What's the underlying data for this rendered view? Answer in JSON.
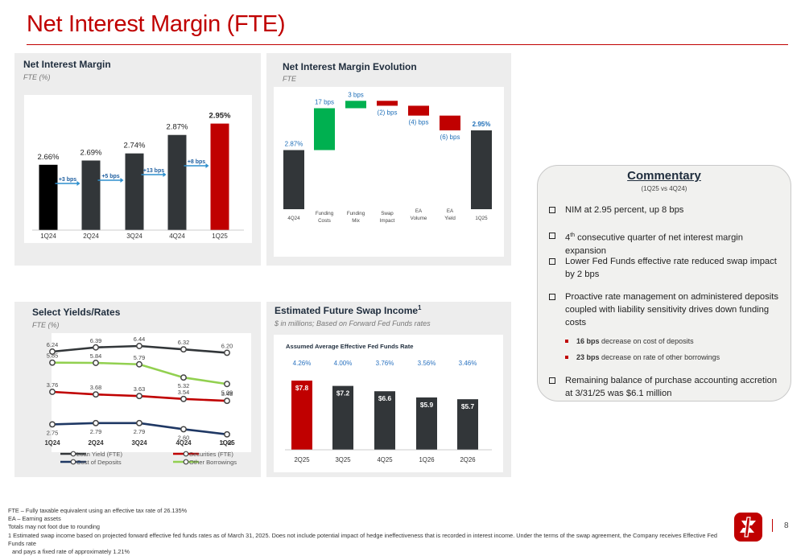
{
  "header": {
    "title": "Net Interest Margin (FTE)"
  },
  "nim_panel": {
    "title": "Net Interest Margin",
    "subtitle": "FTE (%)"
  },
  "evo_panel": {
    "title": "Net Interest Margin Evolution",
    "subtitle": "FTE"
  },
  "yields_panel": {
    "title": "Select Yields/Rates",
    "subtitle": "FTE (%)"
  },
  "swap_panel": {
    "title": "Estimated Future Swap Income",
    "title_sup": "1",
    "subtitle": "$ in millions; Based on Forward Fed Funds rates",
    "rate_heading": "Assumed Average Effective Fed Funds Rate"
  },
  "chart_data": [
    {
      "type": "bar",
      "categories": [
        "1Q24",
        "2Q24",
        "3Q24",
        "4Q24",
        "1Q25"
      ],
      "values": [
        2.66,
        2.69,
        2.74,
        2.87,
        2.95
      ],
      "value_labels": [
        "2.66%",
        "2.69%",
        "2.74%",
        "2.87%",
        "2.95%"
      ],
      "change_labels": [
        "+3 bps",
        "+5 bps",
        "+13 bps",
        "+8 bps"
      ],
      "colors": [
        "#000000",
        "#323639",
        "#323639",
        "#323639",
        "#c00000"
      ]
    },
    {
      "type": "bar",
      "categories": [
        "4Q24",
        "Funding Costs",
        "Funding Mix",
        "Swap Impact",
        "EA Volume",
        "EA Yield",
        "1Q25"
      ],
      "values": [
        2.87,
        0.17,
        0.03,
        -0.02,
        -0.04,
        -0.06,
        2.95
      ],
      "value_labels": [
        "2.87%",
        "17 bps",
        "3 bps",
        "(2) bps",
        "(4) bps",
        "(6) bps",
        "2.95%"
      ],
      "colors": [
        "#323639",
        "#00b050",
        "#00b050",
        "#c00000",
        "#c00000",
        "#c00000",
        "#323639"
      ]
    },
    {
      "type": "line",
      "categories": [
        "1Q24",
        "2Q24",
        "3Q24",
        "4Q24",
        "1Q25"
      ],
      "series": [
        {
          "name": "Loan Yield (FTE)",
          "values": [
            6.24,
            6.39,
            6.44,
            6.32,
            6.2
          ],
          "labels": [
            "6.24",
            "6.39",
            "6.44",
            "6.32",
            "6.20"
          ],
          "color": "#323639"
        },
        {
          "name": "Other Borrowings",
          "values": [
            5.85,
            5.84,
            5.79,
            5.32,
            5.09
          ],
          "labels": [
            "5.85",
            "5.84",
            "5.79",
            "5.32",
            "5.09"
          ],
          "color": "#92d050"
        },
        {
          "name": "Securities (FTE)",
          "values": [
            3.76,
            3.68,
            3.63,
            3.54,
            3.48
          ],
          "labels": [
            "3.76",
            "3.68",
            "3.63",
            "3.54",
            "3.48"
          ],
          "color": "#c00000"
        },
        {
          "name": "Cost of Deposits",
          "values": [
            2.75,
            2.79,
            2.79,
            2.6,
            2.44
          ],
          "labels": [
            "2.75",
            "2.79",
            "2.79",
            "2.60",
            "2.44"
          ],
          "color": "#1f3864"
        }
      ]
    },
    {
      "type": "bar",
      "categories": [
        "2Q25",
        "3Q25",
        "4Q25",
        "1Q26",
        "2Q26"
      ],
      "values": [
        7.8,
        7.2,
        6.6,
        5.9,
        5.7
      ],
      "value_labels": [
        "$7.8",
        "$7.2",
        "$6.6",
        "$5.9",
        "$5.7"
      ],
      "fed_funds_rates": [
        "4.26%",
        "4.00%",
        "3.76%",
        "3.56%",
        "3.46%"
      ],
      "colors": [
        "#c00000",
        "#323639",
        "#323639",
        "#323639",
        "#323639"
      ]
    }
  ],
  "commentary": {
    "title": "Commentary",
    "subtitle": "(1Q25 vs 4Q24)",
    "b1": "NIM at 2.95 percent, up 8 bps",
    "b2_pre": "4",
    "b2_sup": "th",
    "b2_post": " consecutive quarter of net interest margin expansion",
    "b3": "Lower Fed Funds effective rate reduced swap impact by 2 bps",
    "b4": "Proactive rate management on administered deposits coupled with liability sensitivity drives down funding costs",
    "s1_bold": "16 bps",
    "s1_rest": " decrease on cost of deposits",
    "s2_bold": "23 bps",
    "s2_rest": " decrease on rate of other borrowings",
    "b5": "Remaining balance of purchase accounting accretion at 3/31/25 was $6.1 million"
  },
  "footnotes": {
    "f1": "FTE – Fully taxable equivalent using an effective tax rate of 26.135%",
    "f2": "EA – Earning assets",
    "f3": "Totals may not foot due to rounding",
    "f4": "1 Estimated swap income based on projected forward effective fed funds rates as of March 31, 2025. Does not include potential impact of hedge ineffectiveness that is recorded in interest income. Under the terms of the swap agreement, the Company receives Effective Fed Funds rate",
    "f5": "and pays a fixed rate of approximately 1.21%"
  },
  "page": {
    "number": "8"
  }
}
